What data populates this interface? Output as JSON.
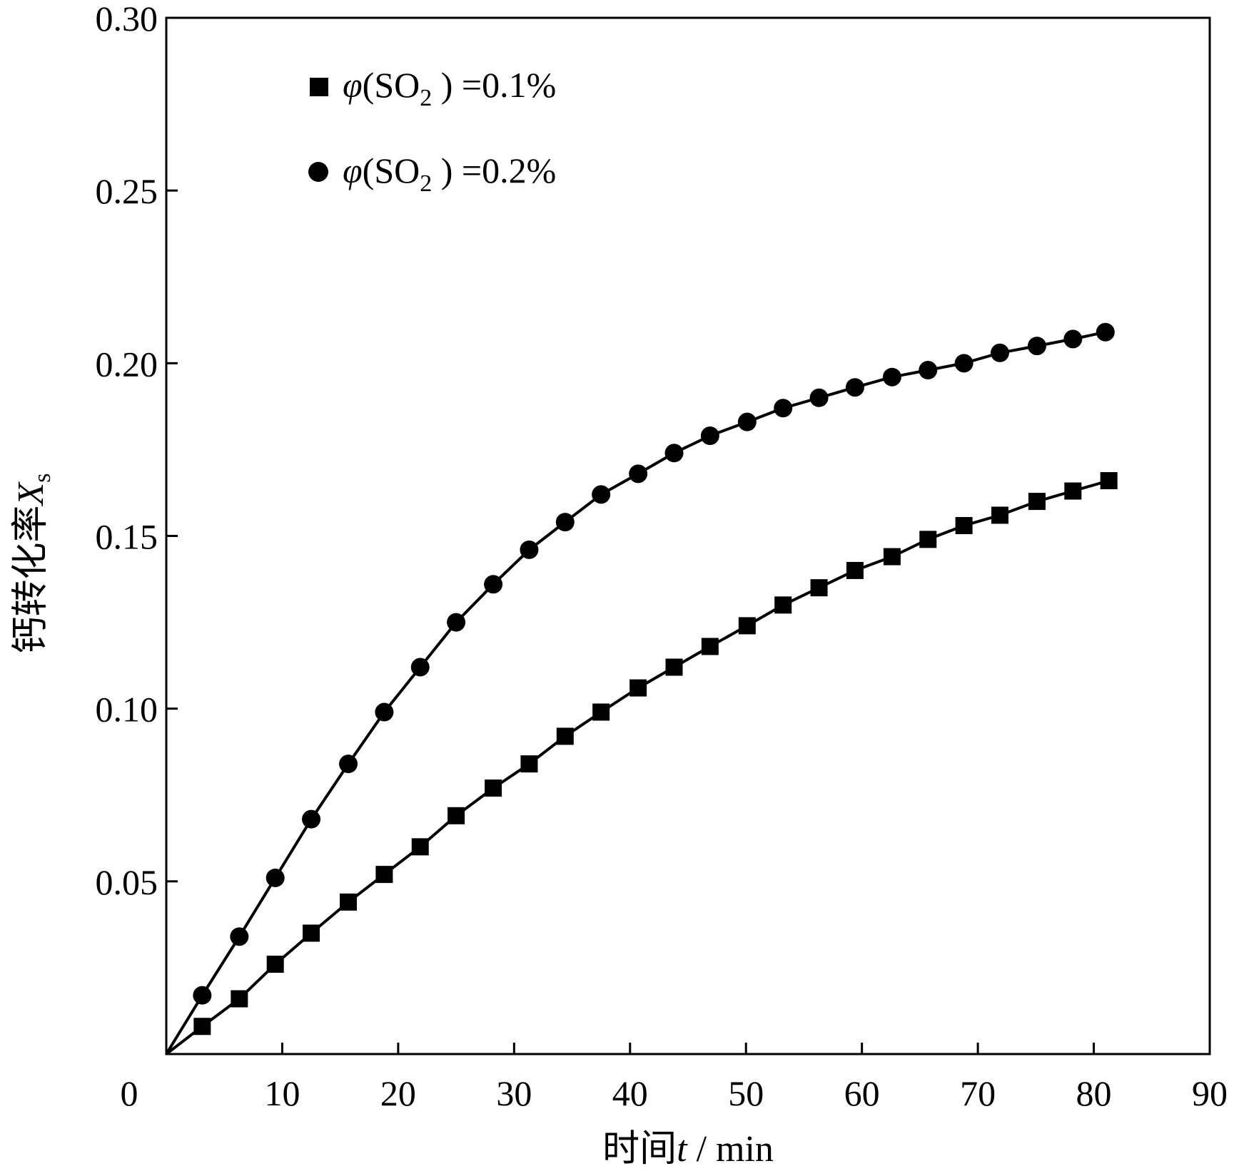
{
  "chart_data": {
    "type": "line",
    "title": "",
    "xlabel": "时间t / min",
    "ylabel": "钙转化率 Xs",
    "xlim": [
      0,
      90
    ],
    "ylim": [
      0,
      0.3
    ],
    "xticks": [
      "0",
      "10",
      "20",
      "30",
      "40",
      "50",
      "60",
      "70",
      "80",
      "90"
    ],
    "yticks": [
      "0.05",
      "0.10",
      "0.15",
      "0.20",
      "0.25",
      "0.30"
    ],
    "grid": false,
    "legend": {
      "position": "top-left"
    },
    "series": [
      {
        "name": "φ(SO2) =0.1%",
        "marker": "square",
        "x": [
          0,
          3.1,
          6.3,
          9.4,
          12.5,
          15.7,
          18.8,
          21.9,
          25.0,
          28.2,
          31.3,
          34.4,
          37.5,
          40.7,
          43.8,
          46.9,
          50.1,
          53.2,
          56.3,
          59.4,
          62.6,
          65.7,
          68.8,
          71.9,
          75.1,
          78.2,
          81.3
        ],
        "y": [
          0,
          0.008,
          0.016,
          0.026,
          0.035,
          0.044,
          0.052,
          0.06,
          0.069,
          0.077,
          0.084,
          0.092,
          0.099,
          0.106,
          0.112,
          0.118,
          0.124,
          0.13,
          0.135,
          0.14,
          0.144,
          0.149,
          0.153,
          0.156,
          0.16,
          0.163,
          0.166
        ]
      },
      {
        "name": "φ(SO2) =0.2%",
        "marker": "circle",
        "x": [
          0,
          3.1,
          6.3,
          9.4,
          12.5,
          15.7,
          18.8,
          21.9,
          25.0,
          28.2,
          31.3,
          34.4,
          37.5,
          40.7,
          43.8,
          46.9,
          50.1,
          53.2,
          56.3,
          59.4,
          62.6,
          65.7,
          68.8,
          71.9,
          75.1,
          78.2,
          81.0
        ],
        "y": [
          0,
          0.017,
          0.034,
          0.051,
          0.068,
          0.084,
          0.099,
          0.112,
          0.125,
          0.136,
          0.146,
          0.154,
          0.162,
          0.168,
          0.174,
          0.179,
          0.183,
          0.187,
          0.19,
          0.193,
          0.196,
          0.198,
          0.2,
          0.203,
          0.205,
          0.207,
          0.209
        ]
      }
    ]
  },
  "legend_labels": {
    "s1": {
      "phi": "φ",
      "open": "(SO",
      "sub": "2",
      "close": " ) =0.1%"
    },
    "s2": {
      "phi": "φ",
      "open": "(SO",
      "sub": "2",
      "close": " ) =0.2%"
    }
  },
  "axis_labels": {
    "x": {
      "cjk": "时间",
      "var": "t",
      "unit": " / min"
    },
    "y": {
      "cjk": "钙转化率",
      "var": "X",
      "sub": "s"
    }
  }
}
